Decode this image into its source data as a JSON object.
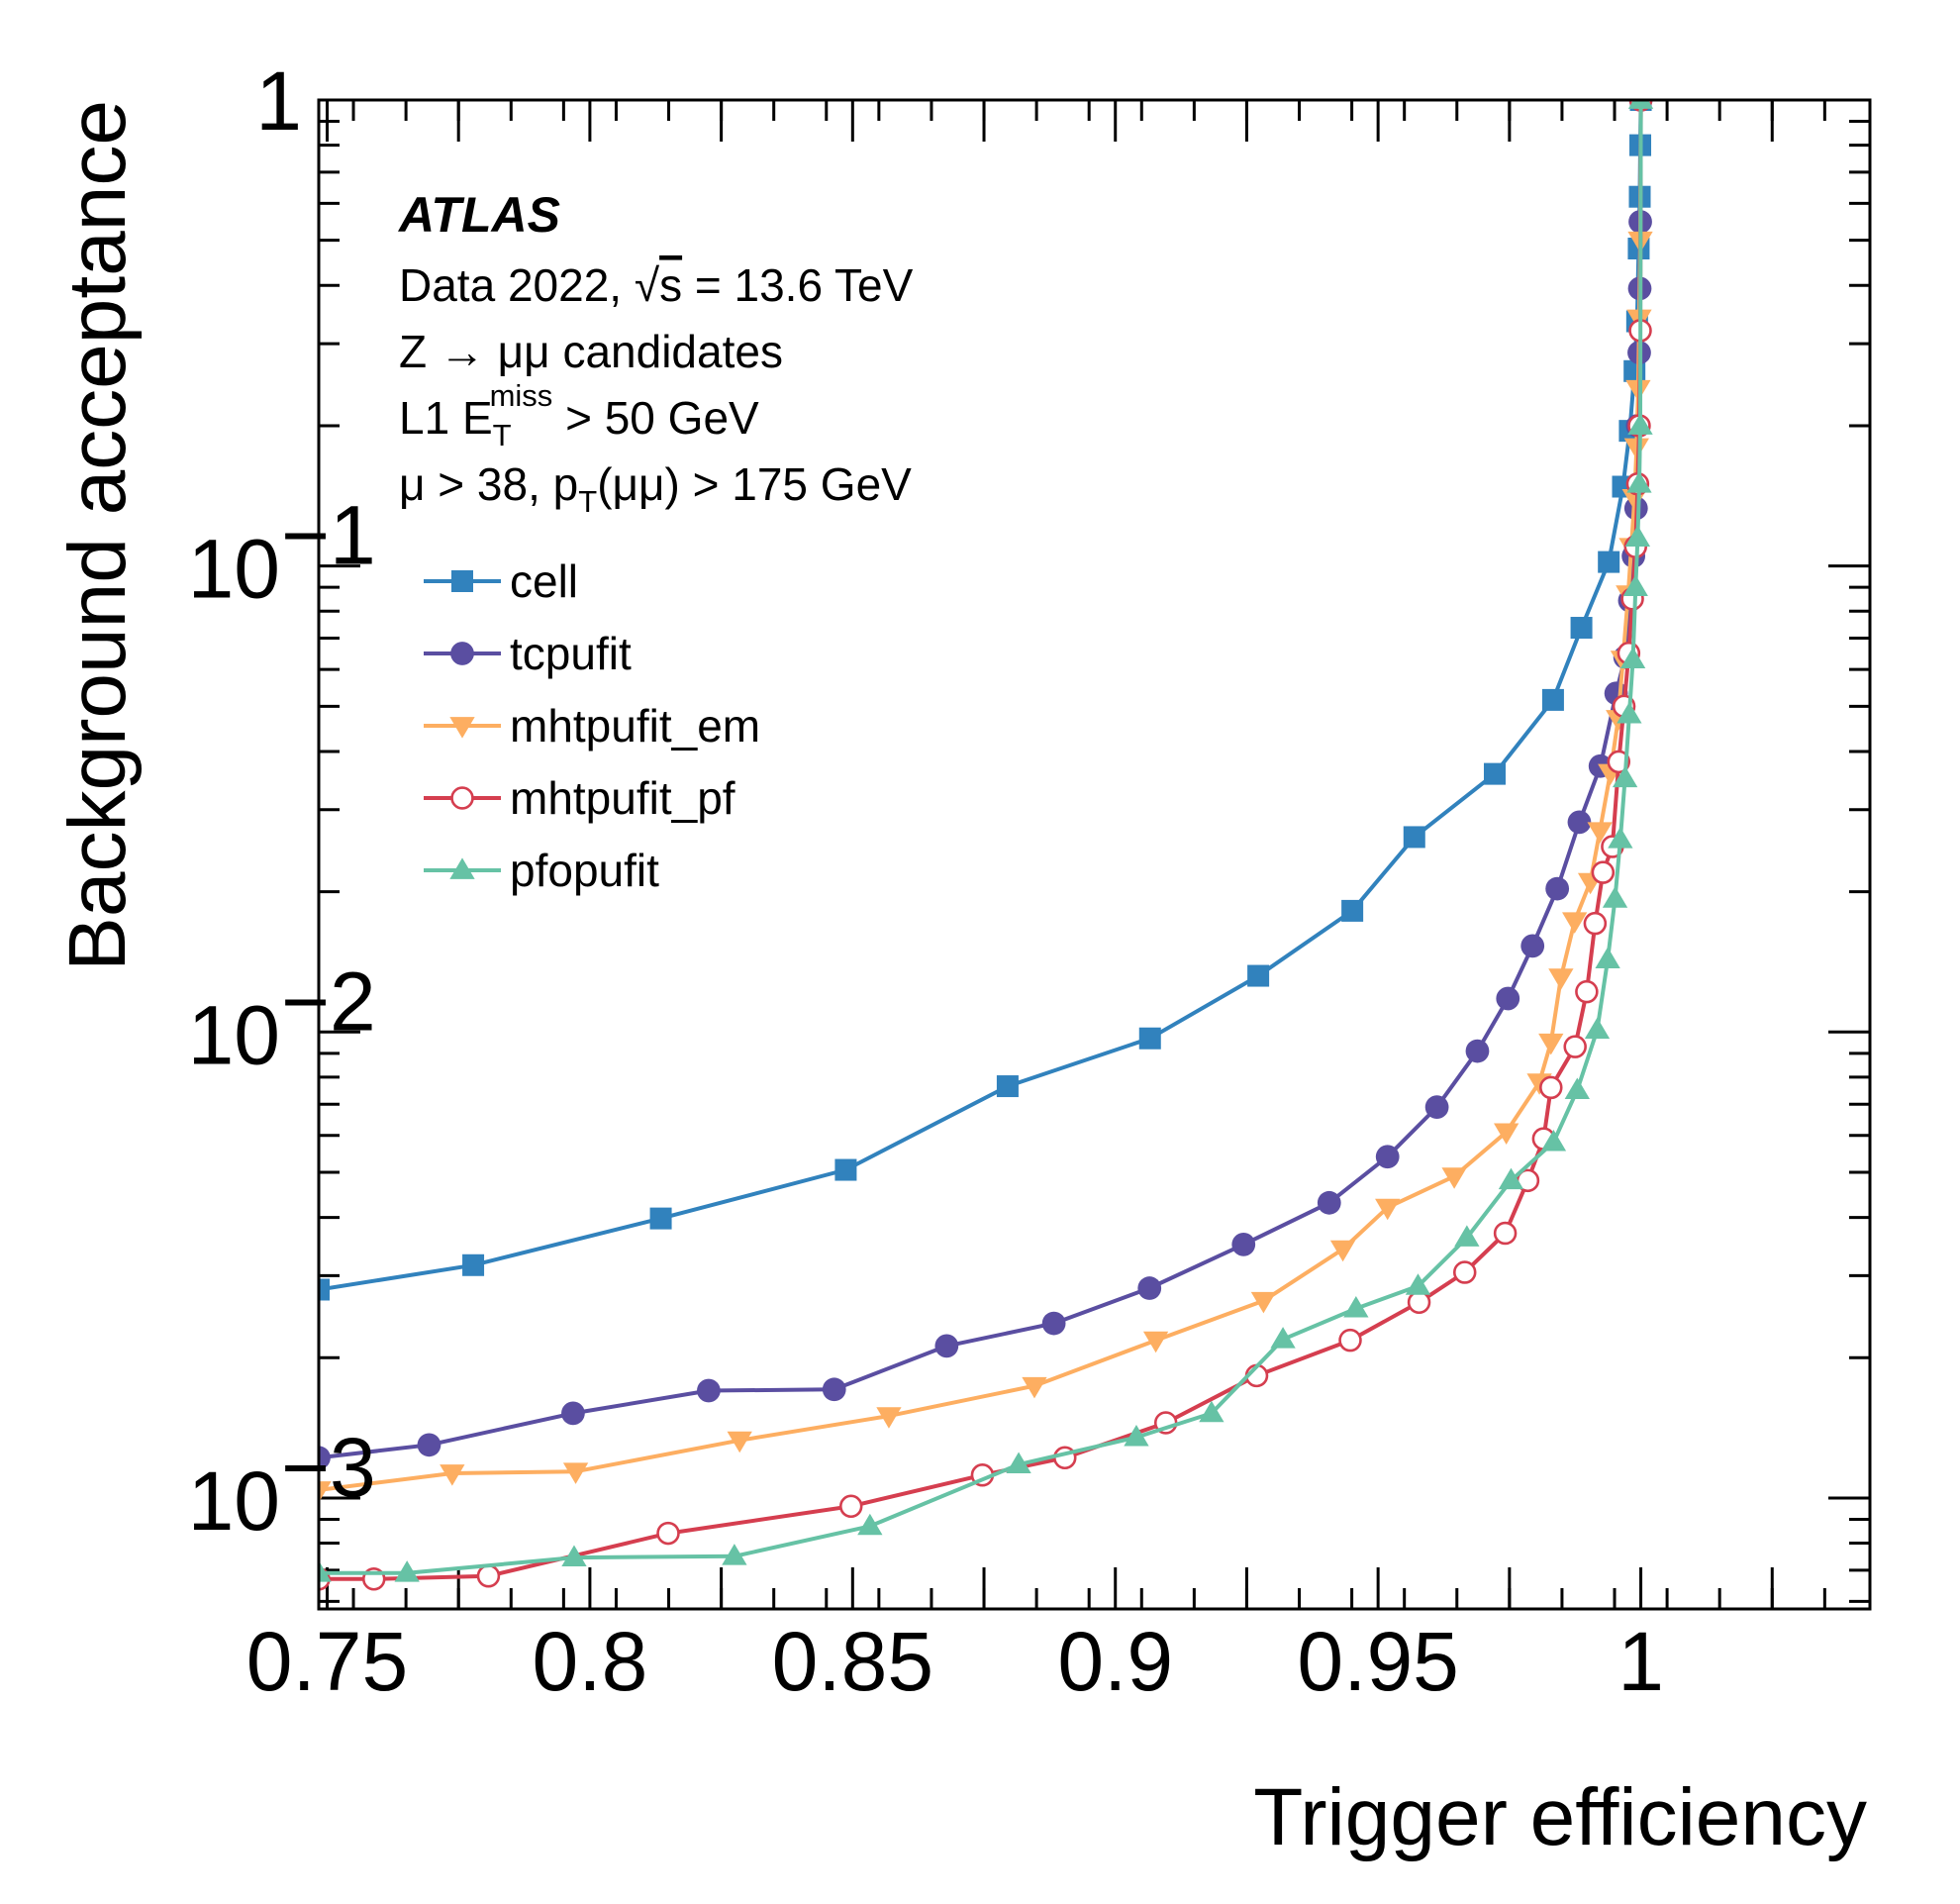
{
  "chart_data": {
    "type": "line",
    "title": "",
    "xlabel": "Trigger efficiency",
    "ylabel": "Background acceptance",
    "xlim": [
      0.7484,
      1.0436
    ],
    "ylim": [
      0.000578,
      1.0
    ],
    "yscale": "log",
    "grid": false,
    "legend_position": "top-left",
    "x_tick_labels": [
      {
        "value": 0.75,
        "label": "0.75"
      },
      {
        "value": 0.8,
        "label": "0.8"
      },
      {
        "value": 0.85,
        "label": "0.85"
      },
      {
        "value": 0.9,
        "label": "0.9"
      },
      {
        "value": 0.95,
        "label": "0.95"
      },
      {
        "value": 1.0,
        "label": "1"
      }
    ],
    "y_tick_labels": [
      {
        "value": 0.001,
        "base": "10",
        "exp": "−3"
      },
      {
        "value": 0.01,
        "base": "10",
        "exp": "−2"
      },
      {
        "value": 0.1,
        "base": "10",
        "exp": "−1"
      },
      {
        "value": 1.0,
        "base": "1",
        "exp": ""
      }
    ],
    "annotations": {
      "experiment": "ATLAS",
      "data_line_prefix": "Data 2022, ",
      "sqrt_symbol": "√",
      "sqrt_arg": "s",
      "data_line_suffix": " = 13.6 TeV",
      "sample": "Z → μμ candidates",
      "l1_prefix": "L1 E",
      "l1_sub": "T",
      "l1_sup": "miss",
      "l1_suffix": " > 50 GeV",
      "sel_prefix": "μ > 38, p",
      "sel_sub": "T",
      "sel_suffix": "(μμ) > 175 GeV"
    },
    "series": [
      {
        "name": "cell",
        "color": "#3182bd",
        "marker": "square",
        "x": [
          0.7484,
          0.7778,
          0.8135,
          0.8487,
          0.8795,
          0.9066,
          0.9272,
          0.9451,
          0.9569,
          0.9722,
          0.9833,
          0.9887,
          0.9939,
          0.9966,
          0.9979,
          0.9988,
          0.9993,
          0.9996,
          0.9998,
          0.9999,
          1.0
        ],
        "y": [
          0.0028,
          0.00316,
          0.00398,
          0.00506,
          0.00765,
          0.00969,
          0.0132,
          0.0182,
          0.0262,
          0.0358,
          0.0516,
          0.0737,
          0.102,
          0.148,
          0.195,
          0.262,
          0.335,
          0.48,
          0.62,
          0.8,
          1.0
        ]
      },
      {
        "name": "tcpufit",
        "color": "#5a4ea1",
        "marker": "circle",
        "x": [
          0.7484,
          0.7694,
          0.7968,
          0.8226,
          0.8465,
          0.8679,
          0.8883,
          0.9065,
          0.9244,
          0.9407,
          0.9518,
          0.9612,
          0.9689,
          0.9747,
          0.9794,
          0.9841,
          0.9883,
          0.9923,
          0.9953,
          0.997,
          0.9979,
          0.9986,
          0.9991,
          0.9994,
          0.9997,
          0.9998,
          0.9999,
          1.0
        ],
        "y": [
          0.00122,
          0.0013,
          0.00152,
          0.0017,
          0.00171,
          0.00212,
          0.00237,
          0.00282,
          0.0035,
          0.0043,
          0.0054,
          0.0069,
          0.0091,
          0.0118,
          0.0153,
          0.0203,
          0.0282,
          0.0372,
          0.0533,
          0.0637,
          0.0843,
          0.105,
          0.133,
          0.2,
          0.287,
          0.394,
          0.548,
          1.0
        ]
      },
      {
        "name": "mhtpufit_em",
        "color": "#fdae61",
        "marker": "triangle-down",
        "x": [
          0.7484,
          0.7738,
          0.7973,
          0.8285,
          0.8569,
          0.8846,
          0.9077,
          0.9282,
          0.9433,
          0.9518,
          0.9645,
          0.9744,
          0.9807,
          0.9829,
          0.9848,
          0.9874,
          0.9904,
          0.9922,
          0.9942,
          0.9957,
          0.9966,
          0.9976,
          0.9982,
          0.9988,
          0.9992,
          0.9995,
          0.9997,
          0.9999,
          1.0
        ],
        "y": [
          0.00104,
          0.00113,
          0.00114,
          0.00133,
          0.0015,
          0.00174,
          0.00218,
          0.00265,
          0.00342,
          0.0042,
          0.0049,
          0.0061,
          0.0078,
          0.0095,
          0.0131,
          0.0173,
          0.021,
          0.027,
          0.036,
          0.047,
          0.063,
          0.087,
          0.11,
          0.14,
          0.18,
          0.24,
          0.34,
          0.5,
          1.0
        ]
      },
      {
        "name": "mhtpufit_pf",
        "color": "#d53e4f",
        "marker": "circle-open",
        "x": [
          0.7484,
          0.7589,
          0.7807,
          0.8149,
          0.8497,
          0.8747,
          0.8904,
          0.9096,
          0.9269,
          0.9447,
          0.9578,
          0.9665,
          0.9742,
          0.9785,
          0.9815,
          0.9829,
          0.9875,
          0.9897,
          0.9913,
          0.9928,
          0.9946,
          0.9958,
          0.9968,
          0.9977,
          0.9984,
          0.999,
          0.9994,
          0.9997,
          0.9999,
          1.0
        ],
        "y": [
          0.00067,
          0.00067,
          0.00068,
          0.00084,
          0.00096,
          0.00112,
          0.00122,
          0.00145,
          0.00183,
          0.00218,
          0.00263,
          0.00305,
          0.0037,
          0.0048,
          0.0059,
          0.0076,
          0.0093,
          0.0122,
          0.0171,
          0.022,
          0.025,
          0.038,
          0.05,
          0.065,
          0.085,
          0.11,
          0.15,
          0.2,
          0.32,
          1.0
        ]
      },
      {
        "name": "pfopufit",
        "color": "#66c2a5",
        "marker": "triangle-up",
        "x": [
          0.7484,
          0.7652,
          0.797,
          0.8275,
          0.8533,
          0.8816,
          0.904,
          0.9183,
          0.9319,
          0.9458,
          0.9576,
          0.9669,
          0.9753,
          0.9834,
          0.9879,
          0.9917,
          0.9937,
          0.9951,
          0.9961,
          0.997,
          0.9978,
          0.9985,
          0.999,
          0.9994,
          0.9997,
          0.9999,
          1.0
        ],
        "y": [
          0.00069,
          0.00069,
          0.000745,
          0.00075,
          0.00087,
          0.00118,
          0.00135,
          0.00152,
          0.00219,
          0.00255,
          0.00285,
          0.00362,
          0.0048,
          0.0058,
          0.0075,
          0.0101,
          0.0143,
          0.0193,
          0.0259,
          0.035,
          0.048,
          0.063,
          0.09,
          0.115,
          0.15,
          0.2,
          1.0
        ]
      }
    ]
  }
}
